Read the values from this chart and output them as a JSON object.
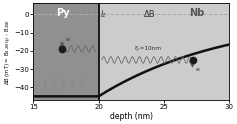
{
  "xmin": 15,
  "xmax": 30,
  "ymin": -47,
  "ymax": 6,
  "interface_x": 20,
  "py_bg_color": "#909090",
  "nb_bg_color": "#cccccc",
  "curve_color": "#111111",
  "dashed_color": "#aaaaaa",
  "xi_s": 10,
  "B_deep": -45,
  "xlabel": "depth (nm)",
  "ylabel_line1": "ΔB (mT) = B",
  "ylabel_line2": "4.2K(H₀) - B₂₇₆",
  "xticks": [
    15,
    20,
    25,
    30
  ],
  "yticks": [
    0,
    -10,
    -20,
    -30,
    -40
  ],
  "label_Py": "Py",
  "label_Nb": "Nb",
  "label_deltaB": "ΔB",
  "label_l2": "l₂",
  "label_xi": "ξₛ=10nm",
  "label_e": "e",
  "label_hex": "Hₑₓ",
  "wave_color": "#666666",
  "arrow_color": "#555555",
  "hex_color": "#888888",
  "dot_color": "#1a1a1a",
  "py_text_color": "#ffffff",
  "nb_text_color": "#555555",
  "anno_color": "#333333",
  "wave_amp": 1.8,
  "wave_period": 0.55
}
